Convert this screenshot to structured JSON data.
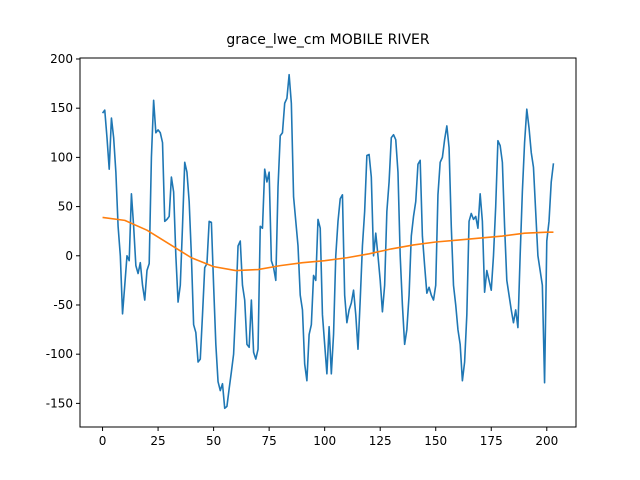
{
  "chart_data": {
    "type": "line",
    "title": "grace_lwe_cm MOBILE RIVER",
    "xlim": [
      -10.15,
      213.15
    ],
    "ylim": [
      -174,
      201
    ],
    "xticks": [
      0,
      25,
      50,
      75,
      100,
      125,
      150,
      175,
      200
    ],
    "yticks": [
      -150,
      -100,
      -50,
      0,
      50,
      100,
      150,
      200
    ],
    "grid": false,
    "series": [
      {
        "color": "#1f77b4",
        "x": [
          0,
          1,
          2,
          3,
          4,
          5,
          6,
          7,
          8,
          9,
          10,
          11,
          12,
          13,
          14,
          15,
          16,
          17,
          18,
          19,
          20,
          21,
          22,
          23,
          24,
          25,
          26,
          27,
          28,
          29,
          30,
          31,
          32,
          33,
          34,
          35,
          36,
          37,
          38,
          39,
          40,
          41,
          42,
          43,
          44,
          45,
          46,
          47,
          48,
          49,
          50,
          51,
          52,
          53,
          54,
          55,
          56,
          57,
          58,
          59,
          60,
          61,
          62,
          63,
          64,
          65,
          66,
          67,
          68,
          69,
          70,
          71,
          72,
          73,
          74,
          75,
          76,
          77,
          78,
          79,
          80,
          81,
          82,
          83,
          84,
          85,
          86,
          87,
          88,
          89,
          90,
          91,
          92,
          93,
          94,
          95,
          96,
          97,
          98,
          99,
          100,
          101,
          102,
          103,
          104,
          105,
          106,
          107,
          108,
          109,
          110,
          111,
          112,
          113,
          114,
          115,
          116,
          117,
          118,
          119,
          120,
          121,
          122,
          123,
          124,
          125,
          126,
          127,
          128,
          129,
          130,
          131,
          132,
          133,
          134,
          135,
          136,
          137,
          138,
          139,
          140,
          141,
          142,
          143,
          144,
          145,
          146,
          147,
          148,
          149,
          150,
          151,
          152,
          153,
          154,
          155,
          156,
          157,
          158,
          159,
          160,
          161,
          162,
          163,
          164,
          165,
          166,
          167,
          168,
          169,
          170,
          171,
          172,
          173,
          174,
          175,
          176,
          177,
          178,
          179,
          180,
          181,
          182,
          183,
          184,
          185,
          186,
          187,
          188,
          189,
          190,
          191,
          192,
          193,
          194,
          195,
          196,
          197,
          198,
          199,
          200,
          201,
          202,
          203
        ],
        "values": [
          145,
          148,
          120,
          88,
          140,
          120,
          85,
          30,
          0,
          -59,
          -30,
          0,
          -5,
          63,
          30,
          -10,
          -18,
          -7,
          -30,
          -45,
          -15,
          -8,
          100,
          158,
          125,
          128,
          125,
          115,
          35,
          37,
          40,
          80,
          65,
          0,
          -47,
          -30,
          30,
          95,
          85,
          55,
          0,
          -70,
          -78,
          -108,
          -105,
          -60,
          -12,
          -8,
          35,
          34,
          -30,
          -90,
          -128,
          -137,
          -130,
          -155,
          -153,
          -135,
          -118,
          -100,
          -50,
          10,
          15,
          -30,
          -45,
          -90,
          -93,
          -45,
          -98,
          -105,
          -95,
          30,
          28,
          88,
          75,
          85,
          -5,
          -12,
          -25,
          70,
          122,
          125,
          155,
          160,
          184,
          155,
          60,
          35,
          10,
          -40,
          -55,
          -110,
          -127,
          -80,
          -70,
          -20,
          -25,
          37,
          28,
          -60,
          -90,
          -120,
          -72,
          -120,
          -80,
          0,
          35,
          58,
          62,
          -40,
          -68,
          -55,
          -48,
          -35,
          -60,
          -95,
          -45,
          10,
          45,
          102,
          103,
          80,
          0,
          23,
          0,
          -25,
          -57,
          -30,
          45,
          75,
          120,
          123,
          118,
          85,
          0,
          -50,
          -90,
          -75,
          -40,
          20,
          40,
          55,
          93,
          97,
          20,
          -10,
          -38,
          -32,
          -40,
          -45,
          -30,
          62,
          95,
          100,
          118,
          132,
          110,
          30,
          -30,
          -50,
          -75,
          -90,
          -127,
          -108,
          -60,
          35,
          43,
          37,
          40,
          28,
          63,
          35,
          -37,
          -15,
          -25,
          -35,
          0,
          50,
          117,
          112,
          95,
          30,
          -25,
          -40,
          -55,
          -68,
          -55,
          -73,
          0,
          65,
          115,
          149,
          130,
          105,
          90,
          45,
          0,
          -15,
          -30,
          -129,
          15,
          35,
          75,
          94
        ]
      },
      {
        "color": "#ff7f0e",
        "x": [
          0,
          10,
          20,
          30,
          40,
          50,
          60,
          70,
          80,
          90,
          100,
          110,
          120,
          130,
          140,
          150,
          160,
          170,
          180,
          190,
          200,
          203
        ],
        "values": [
          39,
          36,
          26,
          12,
          -2,
          -11,
          -15,
          -14,
          -10,
          -7,
          -5,
          -2,
          2,
          7,
          11,
          14,
          16,
          18,
          20,
          23,
          24,
          24
        ]
      }
    ]
  }
}
